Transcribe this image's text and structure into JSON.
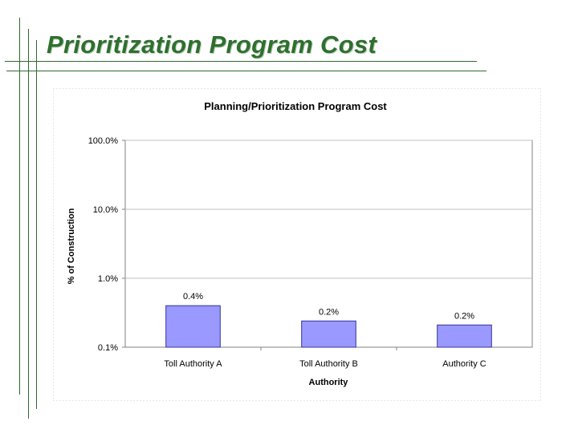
{
  "slide": {
    "title": "Prioritization Program Cost"
  },
  "colors": {
    "accent": "#2e6b2e",
    "bar_fill": "#9999ff",
    "bar_stroke": "#333399",
    "grid": "#c0c0c0"
  },
  "chart_data": {
    "type": "bar",
    "title": "Planning/Prioritization Program Cost",
    "xlabel": "Authority",
    "ylabel": "% of Construction",
    "yscale": "log",
    "ylim": [
      0.1,
      100
    ],
    "yticks": [
      0.1,
      1,
      10,
      100
    ],
    "ytick_labels": [
      "0.1%",
      "1.0%",
      "10.0%",
      "100.0%"
    ],
    "categories": [
      "Toll Authority A",
      "Toll Authority B",
      "Authority C"
    ],
    "values": [
      0.4,
      0.24,
      0.21
    ],
    "data_labels": [
      "0.4%",
      "0.2%",
      "0.2%"
    ],
    "grid": true,
    "legend": "none"
  }
}
